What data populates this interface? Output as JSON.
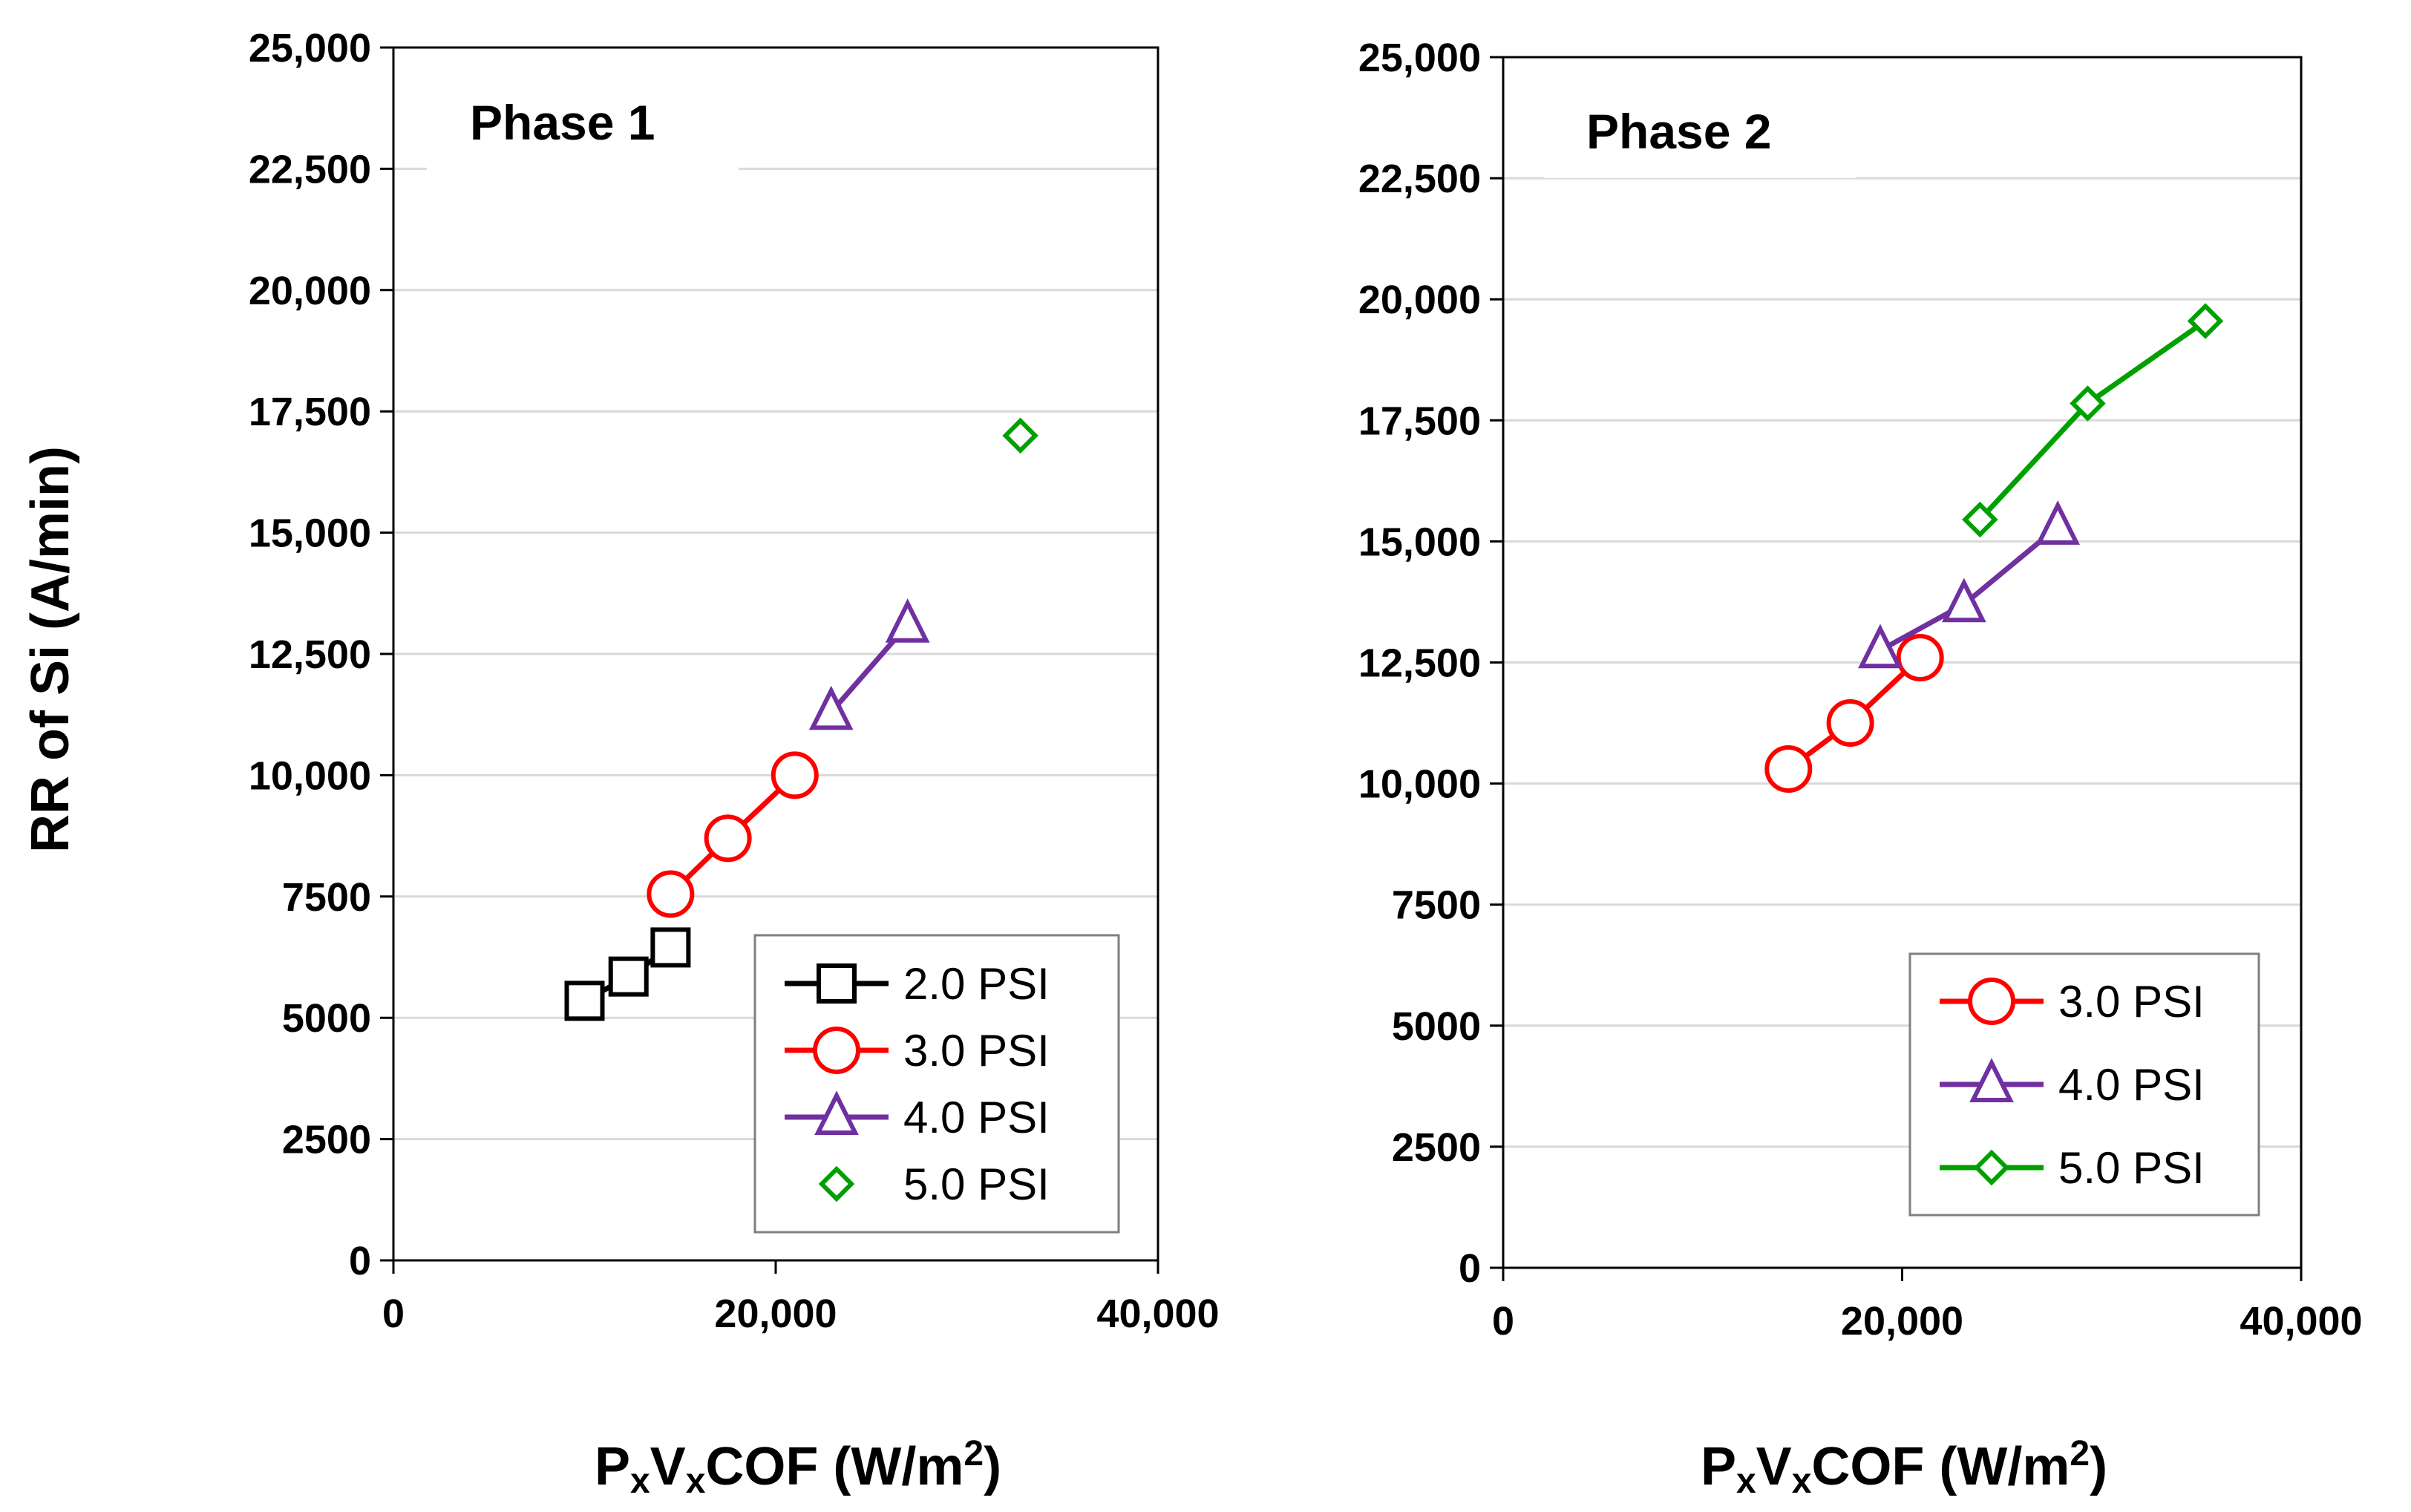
{
  "ylabel": "RR of Si (A/min)",
  "xlabel": {
    "p": "P",
    "x1": "x",
    "v": "V",
    "x2": "x",
    "rest": "COF (W/m",
    "exp": "2",
    "close": ")"
  },
  "colors": {
    "2.0 PSI": "#000000",
    "3.0 PSI": "#ff0000",
    "4.0 PSI": "#7030a0",
    "5.0 PSI": "#00a000"
  },
  "chart_data": [
    {
      "type": "scatter",
      "title": "Phase 1",
      "xlim": [
        0,
        40000
      ],
      "ylim": [
        0,
        25000
      ],
      "x_ticks": [
        "0",
        "20,000",
        "40,000"
      ],
      "y_ticks": [
        "0",
        "2500",
        "5000",
        "7500",
        "10,000",
        "12,500",
        "15,000",
        "17,500",
        "20,000",
        "22,500",
        "25,000"
      ],
      "grid": "horizontal",
      "legend_position": "bottom-right",
      "series": [
        {
          "name": "2.0 PSI",
          "marker": "square",
          "line": true,
          "color": "#000000",
          "points": [
            [
              10000,
              5350
            ],
            [
              12300,
              5850
            ],
            [
              14500,
              6450
            ]
          ]
        },
        {
          "name": "3.0 PSI",
          "marker": "circle",
          "line": true,
          "color": "#ff0000",
          "points": [
            [
              14500,
              7550
            ],
            [
              17500,
              8700
            ],
            [
              21000,
              10000
            ]
          ]
        },
        {
          "name": "4.0 PSI",
          "marker": "triangle",
          "line": true,
          "color": "#7030a0",
          "points": [
            [
              22900,
              11300
            ],
            [
              26900,
              13100
            ]
          ]
        },
        {
          "name": "5.0 PSI",
          "marker": "diamond",
          "line": false,
          "color": "#00a000",
          "points": [
            [
              32800,
              17000
            ]
          ]
        }
      ]
    },
    {
      "type": "scatter",
      "title": "Phase 2",
      "xlim": [
        0,
        40000
      ],
      "ylim": [
        0,
        25000
      ],
      "x_ticks": [
        "0",
        "20,000",
        "40,000"
      ],
      "y_ticks": [
        "0",
        "2500",
        "5000",
        "7500",
        "10,000",
        "12,500",
        "15,000",
        "17,500",
        "20,000",
        "22,500",
        "25,000"
      ],
      "grid": "horizontal",
      "legend_position": "bottom-right",
      "series": [
        {
          "name": "3.0 PSI",
          "marker": "circle",
          "line": true,
          "color": "#ff0000",
          "points": [
            [
              14300,
              10300
            ],
            [
              17400,
              11250
            ],
            [
              20900,
              12600
            ]
          ]
        },
        {
          "name": "4.0 PSI",
          "marker": "triangle",
          "line": true,
          "color": "#7030a0",
          "points": [
            [
              18900,
              12750
            ],
            [
              23100,
              13700
            ],
            [
              27800,
              15300
            ]
          ]
        },
        {
          "name": "5.0 PSI",
          "marker": "diamond",
          "line": true,
          "color": "#00a000",
          "points": [
            [
              23900,
              15450
            ],
            [
              29300,
              17850
            ],
            [
              35200,
              19550
            ]
          ]
        }
      ]
    }
  ]
}
